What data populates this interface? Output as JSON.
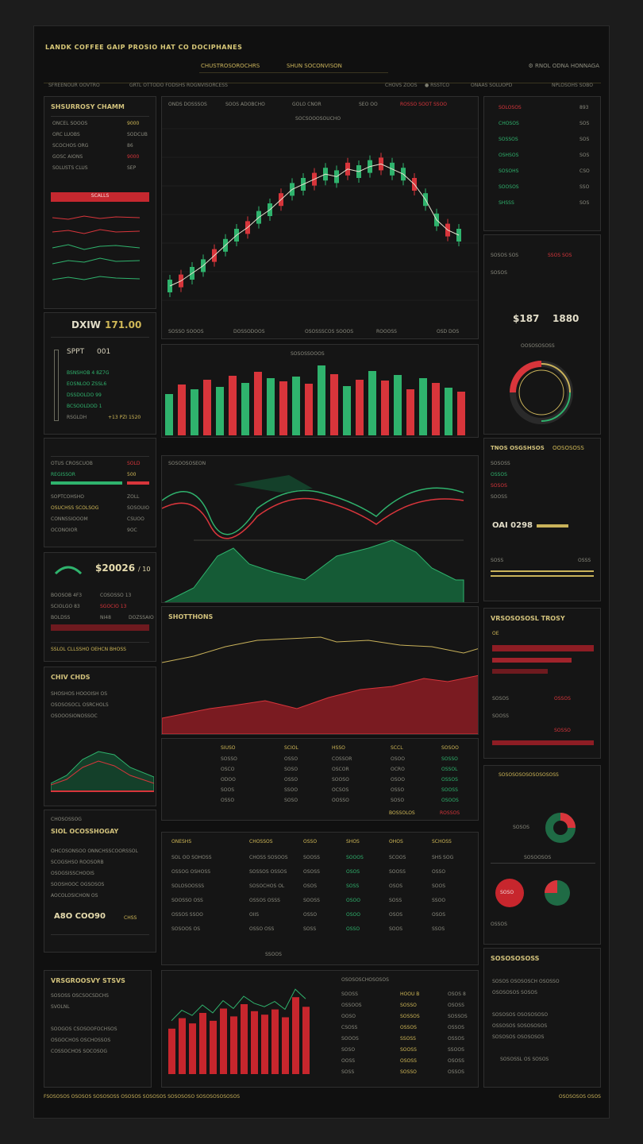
{
  "app": {
    "title": "LANDK COFFEE GAIP PROSIO HAT CO DOCIPHANES",
    "tabs": [
      "CHUSTROSOROCHRS",
      "SHUN SOCONVISON"
    ],
    "top_icons": "⚙  RNOL ODNA HONNAGA",
    "subbar": [
      "SFREENOUR OOVTRO",
      "GRTL OTTODO FODSHS",
      "ROGNVISORCESS",
      "CHOVS ZOOS",
      "● RSSTCO",
      "ONAAS SOLUOPD",
      "NPLOSOHS SOBO"
    ]
  },
  "left_panels": {
    "summary": {
      "title": "SHSURROSY CHAMM",
      "rows": [
        "ONCEL SOOOS",
        "ORC LUOBS",
        "SCOCHOS ORG",
        "GOSC AIONS",
        "SOLUSTS CLUS"
      ],
      "values": [
        "9000",
        "SODCUB",
        "86",
        "9000",
        "SEP"
      ],
      "button": "SCALLS"
    },
    "index_value": {
      "label": "DXIW",
      "value": "171.00",
      "ticker": "SPPT",
      "ticker_value": "001",
      "lines": [
        "BSNSHOB 4 8Z7G",
        "EOSNLOO ZSSL6",
        "DSSDOLDO 99",
        "BCSOOLDOD 1",
        "RSGLDH",
        "+13 PZI 1520"
      ]
    },
    "watchlist": {
      "rows": [
        "OTUS CROSCUOB",
        "REGISSOR",
        "SOPTCOHSHO",
        "OSUCHSS SCOLSOG",
        "CONNSSIOOOM",
        "OCONOIOR"
      ],
      "values": [
        "SOLD",
        "500",
        "ZOLL",
        "SOSOUIO",
        "CSUOO",
        "9OC"
      ]
    },
    "quote": {
      "value": "$20026",
      "change": "/ 10",
      "rows": [
        "BOOSOB 4F3",
        "SCIOLGO 83",
        "BOLDSS"
      ],
      "values": [
        "COSOSSO 13",
        "SGOCIO 13",
        "NI48",
        "DOZSSAIO"
      ],
      "footer": "SSLOL CLLSSHO OEHCN BHOSS"
    },
    "chart_small": {
      "title": "CHIV CHDS",
      "rows": [
        "SHOSHOS HOOOISH OS",
        "OSOSOSOCL OSRCHOLS",
        "OSOOOSIONOSSOC"
      ]
    },
    "report": {
      "title": "CHOSOSSOG",
      "subtitle": "SIOL OCOSSHOGAY",
      "value": "A8O COO90",
      "value_label": "CHSS",
      "lines": [
        "OHCOSONSOO ONNCHSSCOORSSOL",
        "SCOGSHSO ROOSORB",
        "OSOGSISSCHOOIS",
        "SOOSHOOC OGSOSOS",
        "AOCOLOSICHON OS"
      ]
    },
    "volume_story": {
      "title": "VRSGROOSVY STSVS",
      "lines": [
        "SOSOSS OSCSOCSDCHS",
        "SVOLNL",
        "SOOGOS CSOSOOFOCHSOS",
        "OSGOCHOS OSCHOSSOS",
        "COSSOCHOS SOCOSOG"
      ]
    }
  },
  "center": {
    "toolbar": [
      "ONDS DOSSSOS",
      "SOOS ADOBCHO",
      "GOLO CNOR",
      "SEO OO",
      "ROSSO SOOT SSOO"
    ],
    "chart_header": "SOCSOOOSOUCHO",
    "chart_footer": [
      "SOSSO SOOOS",
      "DOSSODOOS",
      "OSOSSSCOS SOOOS",
      "ROOOSS",
      "OSD DOS"
    ],
    "volume_header": "SOSOSSOOOS",
    "oscillator_header": "SOSOOSOSEON",
    "trends_title": "SHOTTHONS",
    "grid_table": {
      "headers": [
        "SIUSO",
        "SCIOL",
        "HSSO",
        "SCCL",
        "SOSOO"
      ],
      "rows": [
        [
          "SOSSO",
          "OSSO",
          "COSSOR",
          "OSOO",
          "SOSSO"
        ],
        [
          "OSCO",
          "SOSO",
          "OSCOR",
          "OCRO",
          "OSSOL"
        ],
        [
          "ODOO",
          "OSSO",
          "SOOSO",
          "OSOO",
          "OSSOS"
        ],
        [
          "SOOS",
          "SSOO",
          "OCSOS",
          "OSSO",
          "SOOSS"
        ],
        [
          "OSSO",
          "SOSO",
          "OOSSO",
          "SOSO",
          "OSOOS"
        ]
      ],
      "footer": [
        "BOSSOLOS",
        "ROSSOS"
      ]
    },
    "orders": {
      "headers": [
        "ONESHS",
        "CHOSSOS",
        "OSSO",
        "SHOS",
        "OHOS",
        "SCHOSS"
      ],
      "rows": [
        [
          "SOL OO SOHOSS",
          "CHOSS SOSOOS",
          "SOOSS",
          "SOOOS",
          "SCOOS",
          "SHS SOG"
        ],
        [
          "OSSOG OSHOSS",
          "SOSSOS OSSOS",
          "OSOSS",
          "OSOS",
          "SOOSS",
          "OSSO"
        ],
        [
          "SOLOSOOSSS",
          "SOSOCHOS OL",
          "OSOS",
          "SOSS",
          "OSOS",
          "SOOS"
        ],
        [
          "SOOSSO OSS",
          "OSSOS OSSS",
          "SOOSS",
          "OSOO",
          "SOSS",
          "SSOO"
        ],
        [
          "OSSOS SSOO",
          "OIIS",
          "OSSO",
          "OSOO",
          "OSOS",
          "OSOS"
        ],
        [
          "SOSOOS OS",
          "OSSO OSS",
          "SOSS",
          "OSSO",
          "SOOS",
          "SSOS"
        ]
      ],
      "footer": "SSOOS"
    },
    "bottom_table": {
      "header": "OSOSOSCHOSOSOS",
      "rows": [
        [
          "SOOSS",
          "HOOU B",
          "OSOS 8"
        ],
        [
          "OSSOOS",
          "SOSSO",
          "OSOSS"
        ],
        [
          "OOSO",
          "SOSSOS",
          "SOSSOS"
        ],
        [
          "CSOSS",
          "OSSOS",
          "OSSOS"
        ],
        [
          "SOOOS",
          "SSOSS",
          "OSSOS"
        ],
        [
          "SOSO",
          "SOOSS",
          "SSOOS"
        ],
        [
          "OOSS",
          "OSOSS",
          "OSOSS"
        ],
        [
          "SOSS",
          "SOSSO",
          "OSSOS"
        ]
      ]
    }
  },
  "right_panels": {
    "depth": {
      "rows": [
        "SOLOSOS",
        "CHOSOS",
        "SOSSOS",
        "OSHSOS",
        "SOSOHS",
        "SOOSOS",
        "SHSSS"
      ],
      "values": [
        "893",
        "SOS",
        "SOS",
        "SOS",
        "CSO",
        "SSO",
        "SOS"
      ]
    },
    "gauge": {
      "value": "$187",
      "value2": "1880",
      "label": "OOSOSOSOSS",
      "rows": [
        "SOSOS SOS",
        "SSOS SOS",
        "SOSOS"
      ]
    },
    "trend_data": {
      "title": "TNOS OSGSHSOS",
      "title2": "OOSOSOSS",
      "value": "OAI 0298",
      "rows": [
        "SOSOSS",
        "OSSOS",
        "SOSOS",
        "SOOSS"
      ],
      "footer": [
        "SOSS",
        "OSSS"
      ]
    },
    "vertical_theory": {
      "title": "VRSOSOSOSL TROSY",
      "badge": "OE",
      "rows": [
        "SOSOS",
        "OSSOS",
        "SOOSS",
        "SOSSO"
      ]
    },
    "distribution": {
      "header": "SOSOSOSOSOSOSOSOSS",
      "labels": [
        "SOSOS",
        "OSSOS"
      ],
      "donut_label": "SOSOOSOS",
      "chip": "SOSO"
    },
    "summary": {
      "title": "SOSOSOSOSS",
      "lines": [
        "SOSOS OSOSOSCH OSOSSO",
        "OSOSOSOS SOSOS",
        "SOSOSOS OSOSOSOSO",
        "OSSOSOS SOSOSOSOS",
        "SOSOSOS OSOSOSOS"
      ],
      "footer": "SOSOSSL OS SOSOS"
    }
  },
  "footer": {
    "left": "FSOSOSOS OSOSOS SOSOSOSS OSOSOS SOSOSOS SOSOSOSO SOSOSOSOSOSOS",
    "right": "OSOSOSOS OSOS"
  },
  "chart_data": {
    "type": "line",
    "candles_trend": [
      40,
      42,
      45,
      48,
      52,
      56,
      60,
      63,
      67,
      70,
      74,
      78,
      80,
      82,
      84,
      83,
      86,
      85,
      87,
      88,
      86,
      84,
      80,
      74,
      66,
      62,
      60
    ],
    "volume": [
      52,
      64,
      58,
      70,
      61,
      75,
      66,
      80,
      72,
      68,
      74,
      65,
      88,
      77,
      62,
      70,
      81,
      69,
      76,
      58,
      72,
      66,
      60,
      55
    ],
    "colors": {
      "up": "#2fb36d",
      "down": "#d8353b",
      "accent": "#d0b857"
    }
  }
}
